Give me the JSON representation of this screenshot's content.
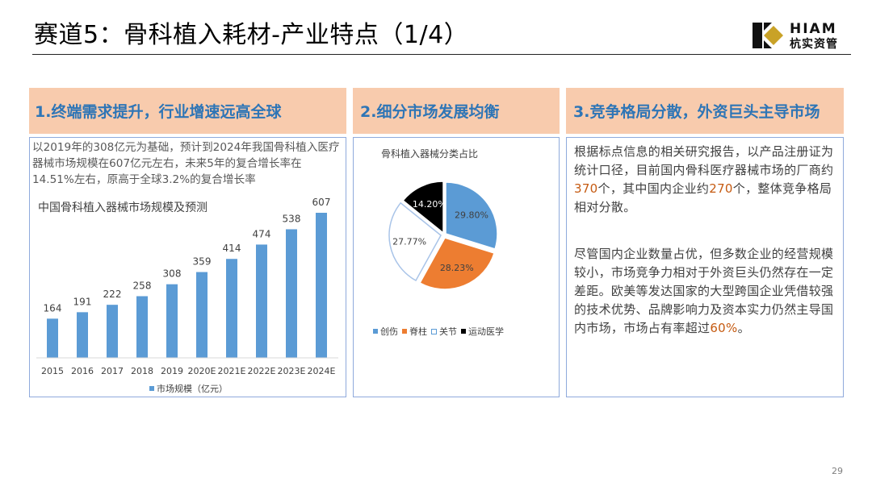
{
  "title": "赛道5：骨科植入耗材-产业特点（1/4）",
  "logo": {
    "en": "HIAM",
    "cn": "杭实资管"
  },
  "sections": [
    {
      "header": "1.终端需求提升，行业增速远高全球"
    },
    {
      "header": "2.细分市场发展均衡"
    },
    {
      "header": "3.竞争格局分散，外资巨头主导市场"
    }
  ],
  "panel1": {
    "text": "以2019年的308亿元为基础，预计到2024年我国骨科植入医疗器械市场规模在607亿元左右，未来5年的复合增长率在14.51%左右，原高于全球3.2%的复合增长率"
  },
  "chart_data": [
    {
      "type": "bar",
      "title": "中国骨科植入器械市场规模及预测",
      "categories": [
        "2015",
        "2016",
        "2017",
        "2018",
        "2019",
        "2020E",
        "2021E",
        "2022E",
        "2023E",
        "2024E"
      ],
      "series": [
        {
          "name": "市场规模（亿元）",
          "values": [
            164,
            191,
            222,
            258,
            308,
            359,
            414,
            474,
            538,
            607
          ]
        }
      ],
      "colors": {
        "bar": "#5b9bd5"
      }
    },
    {
      "type": "pie",
      "title": "骨科植入器械分类占比",
      "labels": [
        "创伤",
        "脊柱",
        "关节",
        "运动医学"
      ],
      "values": [
        29.8,
        28.23,
        27.77,
        14.2
      ],
      "value_labels": [
        "29.80%",
        "28.23%",
        "27.77%",
        "14.20%"
      ],
      "colors": [
        "#5b9bd5",
        "#ed7d31",
        "#ffffff",
        "#000000"
      ]
    }
  ],
  "panel3": {
    "para1": {
      "pre": "根据标点信息的相关研究报告，以产品注册证为统计口径，目前国内骨科医疗器械市场的厂商约",
      "n1": "370",
      "mid": "个，其中国内企业约",
      "n2": "270",
      "post": "个，整体竞争格局相对分散。"
    },
    "para2": {
      "pre": "尽管国内企业数量占优，但多数企业的经营规模较小，市场竞争力相对于外资巨头仍然存在一定差距。欧美等发达国家的大型跨国企业凭借较强的技术优势、品牌影响力及资本实力仍然主导国内市场，市场占有率超过",
      "n": "60%",
      "post": "。"
    }
  },
  "page_number": "29"
}
